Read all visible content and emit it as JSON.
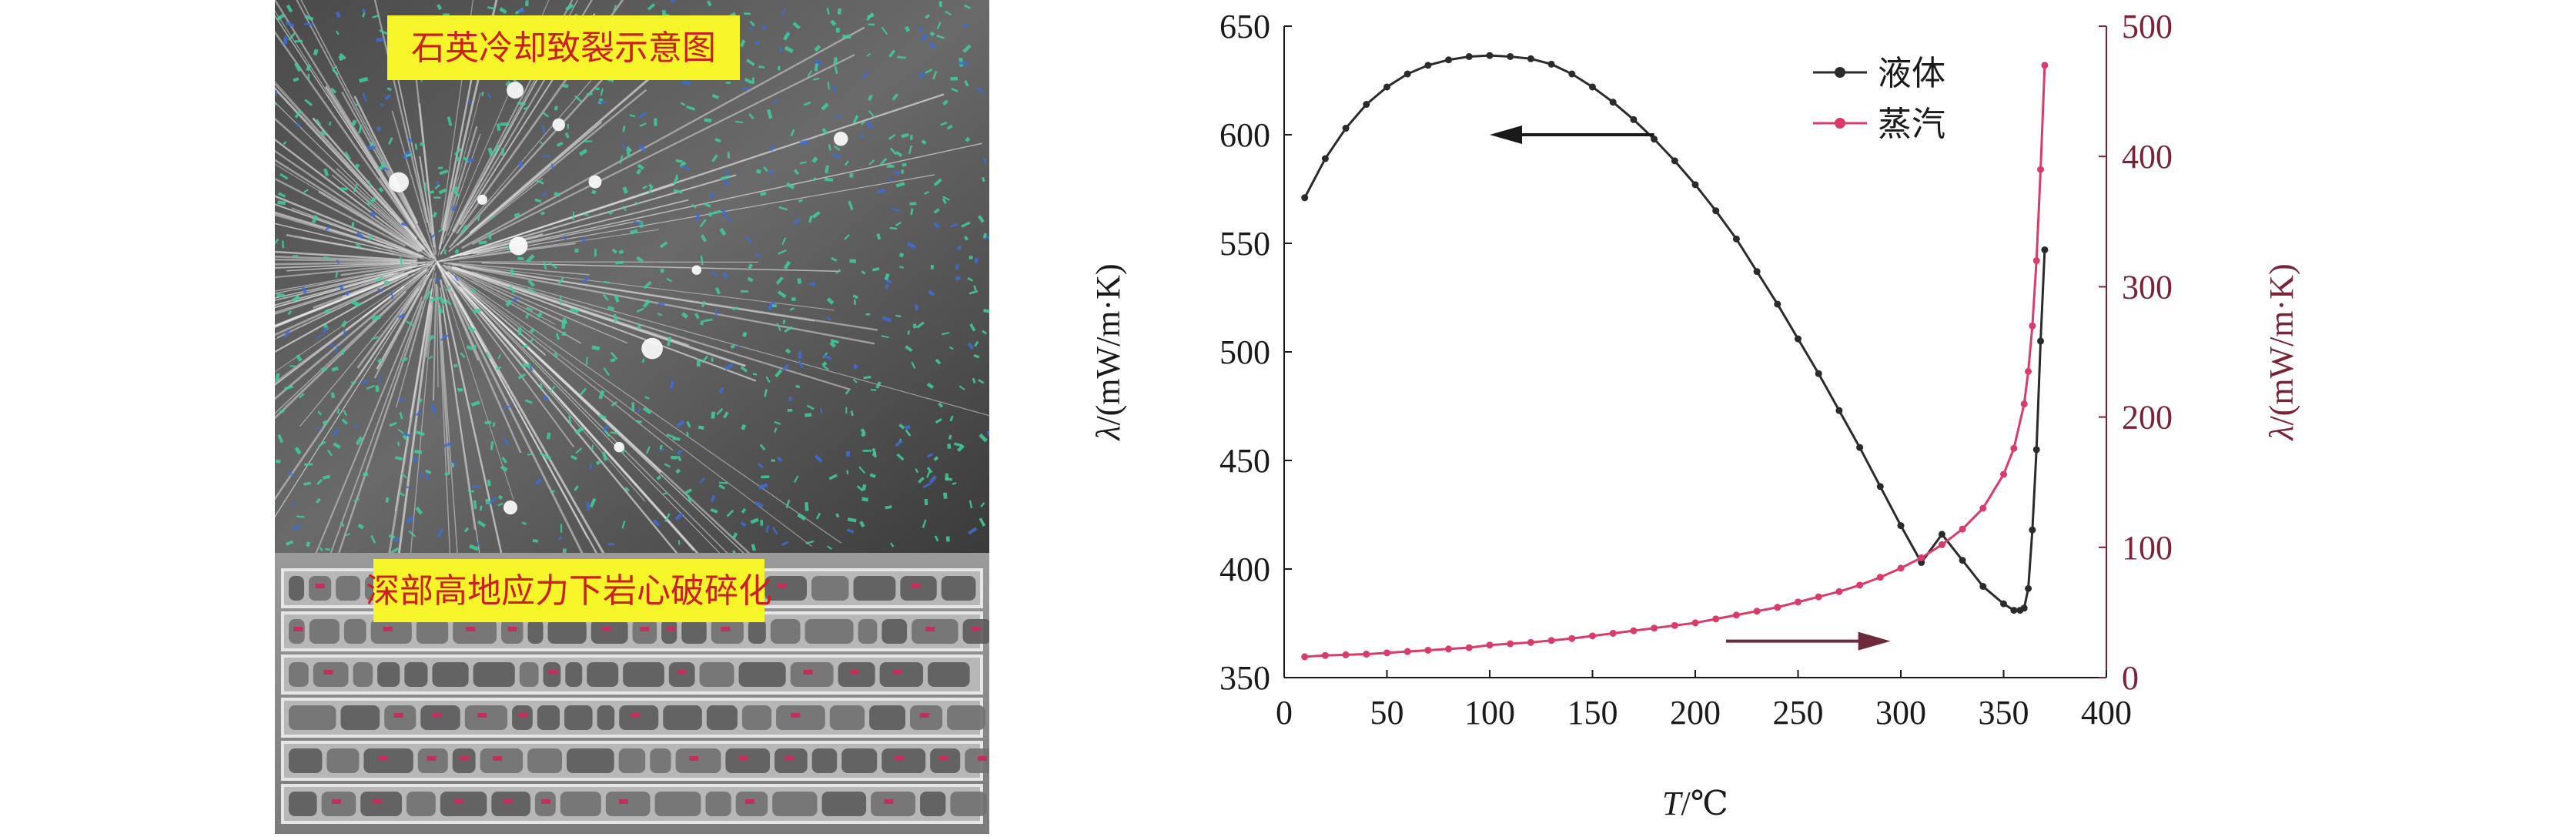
{
  "photos": {
    "top_caption": "石英冷却致裂示意图",
    "bottom_caption": "深部高地应力下岩心破碎化",
    "caption_bg": "#f5f52a",
    "caption_color": "#cc1f1f"
  },
  "chart_data": {
    "type": "line",
    "x_label_italic": "T",
    "x_label_unit": "/℃",
    "y_left_label_italic": "λ",
    "y_left_label_unit": "/(mW/m·K)",
    "y_right_label_italic": "λ",
    "y_right_label_unit": "/(mW/m·K)",
    "xlim": [
      0,
      400
    ],
    "ylim_left": [
      350,
      650
    ],
    "ylim_right": [
      0,
      500
    ],
    "x_ticks": [
      0,
      50,
      100,
      150,
      200,
      250,
      300,
      350,
      400
    ],
    "y_left_ticks": [
      350,
      400,
      450,
      500,
      550,
      600,
      650
    ],
    "y_right_ticks": [
      0,
      100,
      200,
      300,
      400,
      500
    ],
    "grid": false,
    "legend_position": "top-right",
    "series": [
      {
        "name": "液体",
        "axis": "left",
        "color": "#2b2b2b",
        "x": [
          10,
          20,
          30,
          40,
          50,
          60,
          70,
          80,
          90,
          100,
          110,
          120,
          130,
          140,
          150,
          160,
          170,
          180,
          190,
          200,
          210,
          220,
          230,
          240,
          250,
          260,
          270,
          280,
          290,
          300,
          310,
          320,
          330,
          340,
          350,
          355,
          358,
          360,
          362,
          364,
          366,
          368,
          370
        ],
        "y": [
          571,
          589,
          603,
          614,
          622,
          628,
          632,
          634.5,
          636,
          636.5,
          636,
          635,
          632.5,
          628,
          622,
          615,
          607,
          598,
          588,
          577,
          565,
          552,
          537,
          522,
          506,
          490,
          473,
          456,
          438,
          420,
          403,
          416,
          404,
          392,
          384,
          381,
          381,
          382,
          391,
          418,
          455,
          505,
          547
        ]
      },
      {
        "name": "蒸汽",
        "axis": "right",
        "color": "#d83c6a",
        "x": [
          10,
          20,
          30,
          40,
          50,
          60,
          70,
          80,
          90,
          100,
          110,
          120,
          130,
          140,
          150,
          160,
          170,
          180,
          190,
          200,
          210,
          220,
          230,
          240,
          250,
          260,
          270,
          280,
          290,
          300,
          310,
          320,
          330,
          340,
          350,
          355,
          360,
          362,
          364,
          366,
          368,
          370
        ],
        "y": [
          16,
          17,
          17.5,
          18,
          19,
          20,
          21,
          22,
          23,
          25,
          26,
          27,
          28.5,
          30,
          32,
          34,
          36,
          38,
          40,
          42,
          45,
          48,
          51,
          54,
          58,
          62,
          66,
          71,
          77,
          84,
          92,
          102,
          114,
          130,
          156,
          176,
          210,
          235,
          270,
          320,
          390,
          470
        ]
      }
    ],
    "annotations": [
      {
        "type": "arrow",
        "direction": "left",
        "from": [
          180,
          600
        ],
        "to": [
          100,
          600
        ],
        "axis": "left",
        "color": "#1a1a1a"
      },
      {
        "type": "arrow",
        "direction": "right",
        "from": [
          215,
          28
        ],
        "to": [
          295,
          28
        ],
        "axis": "right",
        "color": "#6e2a3a"
      }
    ]
  }
}
